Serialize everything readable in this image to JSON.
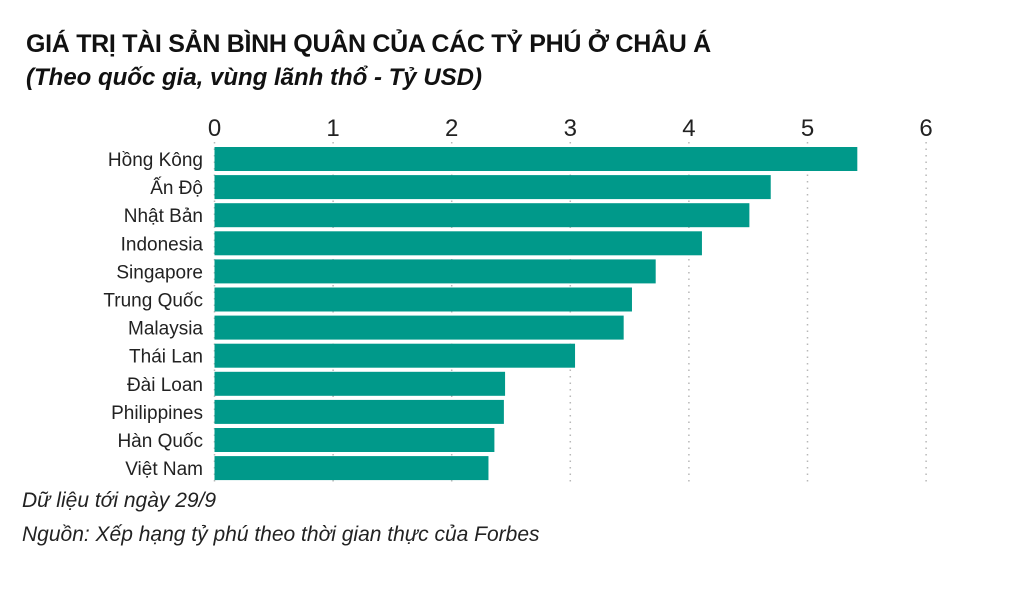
{
  "chart_data": {
    "type": "bar",
    "orientation": "horizontal",
    "title": "GIÁ TRỊ TÀI SẢN BÌNH QUÂN CỦA CÁC TỶ PHÚ Ở CHÂU Á",
    "subtitle": "(Theo quốc gia, vùng lãnh thổ - Tỷ USD)",
    "categories": [
      "Hồng Kông",
      "Ấn Độ",
      "Nhật Bản",
      "Indonesia",
      "Singapore",
      "Trung Quốc",
      "Malaysia",
      "Thái Lan",
      "Đài Loan",
      "Philippines",
      "Hàn Quốc",
      "Việt Nam"
    ],
    "values": [
      5.42,
      4.69,
      4.51,
      4.11,
      3.72,
      3.52,
      3.45,
      3.04,
      2.45,
      2.44,
      2.36,
      2.31
    ],
    "xlim": [
      0,
      6
    ],
    "xticks": [
      "0",
      "1",
      "2",
      "3",
      "4",
      "5",
      "6"
    ],
    "axis_position": "top",
    "grid": "vertical dotted",
    "bar_color": "#00998a"
  },
  "notes": {
    "date": "Dữ liệu tới ngày 29/9",
    "source": "Nguồn: Xếp hạng tỷ phú theo thời gian thực của Forbes"
  }
}
